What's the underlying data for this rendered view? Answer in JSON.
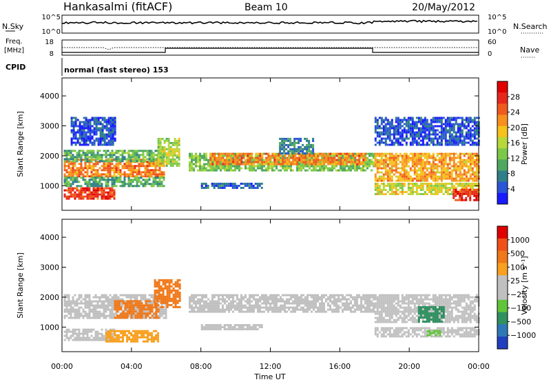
{
  "header": {
    "site": "Hankasalmi (fitACF)",
    "beam": "Beam 10",
    "date": "20/May/2012"
  },
  "summary_panels": {
    "nsky_label": "N.Sky",
    "nsky_ticks": [
      "10^5",
      "10^0"
    ],
    "nsearch_label": "N.Search",
    "nsearch_ticks": [
      "10^5",
      "10^0"
    ],
    "freq_label_1": "Freq.",
    "freq_label_2": "[MHz]",
    "freq_ticks": [
      "18",
      "8"
    ],
    "nave_label": "Nave",
    "nave_ticks": [
      "60",
      "0"
    ],
    "cpid_label": "CPID",
    "cpid_text": "normal (fast stereo) 153"
  },
  "chart_data": [
    {
      "type": "heatmap",
      "name": "power",
      "ylabel": "Slant Range [km]",
      "ylim": [
        180,
        4600
      ],
      "yticks": [
        "4000",
        "3000",
        "2000",
        "1000"
      ],
      "yticks_values": [
        4000,
        3000,
        2000,
        1000
      ],
      "colorbar_label": "Power [dB]",
      "colorbar_ticks": [
        "28",
        "24",
        "20",
        "16",
        "12",
        "8",
        "4"
      ],
      "colorbar_tick_values": [
        28,
        24,
        20,
        16,
        12,
        8,
        4
      ],
      "colorbar_colors": [
        "#1a1aff",
        "#2a55d8",
        "#2e7f8a",
        "#4fa85f",
        "#7cc94a",
        "#b8d83a",
        "#f6c21b",
        "#f7901e",
        "#f05a1e",
        "#e8271c",
        "#e00000"
      ],
      "bands": [
        {
          "x0": 0.1,
          "x1": 5.9,
          "y0": 1300,
          "y1": 1900,
          "level": 22
        },
        {
          "x0": 0.1,
          "x1": 5.9,
          "y0": 1800,
          "y1": 2200,
          "level": 10
        },
        {
          "x0": 0.1,
          "x1": 5.9,
          "y0": 1000,
          "y1": 1300,
          "level": 9
        },
        {
          "x0": 0.1,
          "x1": 3.0,
          "y0": 600,
          "y1": 950,
          "level": 26
        },
        {
          "x0": 0.5,
          "x1": 3.0,
          "y0": 2400,
          "y1": 3300,
          "level": 3
        },
        {
          "x0": 5.5,
          "x1": 6.8,
          "y0": 1700,
          "y1": 2600,
          "level": 14
        },
        {
          "x0": 7.3,
          "x1": 18.0,
          "y0": 1500,
          "y1": 2100,
          "level": 12
        },
        {
          "x0": 8.5,
          "x1": 17.5,
          "y0": 1750,
          "y1": 2100,
          "level": 22
        },
        {
          "x0": 12.5,
          "x1": 14.5,
          "y0": 2100,
          "y1": 2600,
          "level": 6
        },
        {
          "x0": 8.0,
          "x1": 11.5,
          "y0": 900,
          "y1": 1100,
          "level": 4
        },
        {
          "x0": 18.0,
          "x1": 24.0,
          "y0": 1200,
          "y1": 2100,
          "level": 20
        },
        {
          "x0": 18.0,
          "x1": 24.0,
          "y0": 700,
          "y1": 1100,
          "level": 16
        },
        {
          "x0": 22.5,
          "x1": 24.0,
          "y0": 500,
          "y1": 900,
          "level": 27
        },
        {
          "x0": 18.0,
          "x1": 24.0,
          "y0": 2400,
          "y1": 3300,
          "level": 3
        }
      ]
    },
    {
      "type": "heatmap",
      "name": "velocity",
      "xlabel": "Time UT",
      "ylabel": "Slant Range [km]",
      "ylim": [
        180,
        4600
      ],
      "xlim": [
        0,
        24
      ],
      "xticks": [
        "00:00",
        "04:00",
        "08:00",
        "12:00",
        "16:00",
        "20:00",
        "00:00"
      ],
      "yticks": [
        "4000",
        "3000",
        "2000",
        "1000"
      ],
      "yticks_values": [
        4000,
        3000,
        2000,
        1000
      ],
      "colorbar_label": "Velocity [m s⁻¹]",
      "colorbar_ticks": [
        "1000",
        "500",
        "100",
        "25",
        "−25",
        "−100",
        "−500",
        "−1000"
      ],
      "colorbar_colors": [
        "#2040c0",
        "#2e78b8",
        "#2f9060",
        "#62c43a",
        "#c0c0c0",
        "#c0c0c0",
        "#f8a020",
        "#f07818",
        "#f05018",
        "#e00000"
      ],
      "bands": [
        {
          "x0": 0.1,
          "x1": 6.0,
          "y0": 1300,
          "y1": 2100,
          "color": "#c0c0c0"
        },
        {
          "x0": 0.1,
          "x1": 3.0,
          "y0": 600,
          "y1": 950,
          "color": "#c0c0c0"
        },
        {
          "x0": 2.5,
          "x1": 5.5,
          "y0": 500,
          "y1": 900,
          "color": "#f8a020"
        },
        {
          "x0": 3.0,
          "x1": 5.5,
          "y0": 1300,
          "y1": 1900,
          "color": "#f07818"
        },
        {
          "x0": 5.3,
          "x1": 6.8,
          "y0": 1700,
          "y1": 2600,
          "color": "#f07818"
        },
        {
          "x0": 7.3,
          "x1": 18.0,
          "y0": 1500,
          "y1": 2100,
          "color": "#c0c0c0"
        },
        {
          "x0": 8.0,
          "x1": 11.5,
          "y0": 900,
          "y1": 1100,
          "color": "#c0c0c0"
        },
        {
          "x0": 18.0,
          "x1": 24.0,
          "y0": 1200,
          "y1": 2100,
          "color": "#c0c0c0"
        },
        {
          "x0": 18.0,
          "x1": 24.0,
          "y0": 700,
          "y1": 1000,
          "color": "#c0c0c0"
        },
        {
          "x0": 20.5,
          "x1": 22.0,
          "y0": 1200,
          "y1": 1700,
          "color": "#2f9060"
        },
        {
          "x0": 21.0,
          "x1": 21.8,
          "y0": 700,
          "y1": 900,
          "color": "#62c43a"
        }
      ]
    }
  ]
}
